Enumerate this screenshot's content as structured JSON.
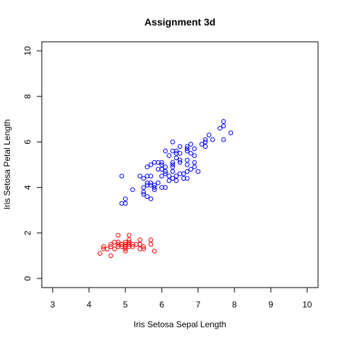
{
  "chart_data": {
    "type": "scatter",
    "title": "Assignment 3d",
    "xlabel": "Iris Setosa Sepal Length",
    "ylabel": "Iris Setosa Petal Length",
    "xlim": [
      2.7,
      10.3
    ],
    "ylim": [
      -0.4,
      10.4
    ],
    "xticks": [
      3,
      4,
      5,
      6,
      7,
      8,
      9,
      10
    ],
    "yticks": [
      0,
      2,
      4,
      6,
      8,
      10
    ],
    "grid": false,
    "legend": "none",
    "series": [
      {
        "color": "#ff0000",
        "marker": "open-circle",
        "points": [
          [
            4.3,
            1.1
          ],
          [
            4.4,
            1.3
          ],
          [
            4.4,
            1.4
          ],
          [
            4.5,
            1.3
          ],
          [
            4.6,
            1.4
          ],
          [
            4.6,
            1.0
          ],
          [
            4.6,
            1.5
          ],
          [
            4.7,
            1.3
          ],
          [
            4.7,
            1.6
          ],
          [
            4.8,
            1.4
          ],
          [
            4.8,
            1.6
          ],
          [
            4.8,
            1.9
          ],
          [
            4.9,
            1.4
          ],
          [
            4.9,
            1.5
          ],
          [
            5.0,
            1.2
          ],
          [
            5.0,
            1.3
          ],
          [
            5.0,
            1.4
          ],
          [
            5.0,
            1.5
          ],
          [
            5.0,
            1.6
          ],
          [
            5.1,
            1.4
          ],
          [
            5.1,
            1.5
          ],
          [
            5.1,
            1.7
          ],
          [
            5.1,
            1.9
          ],
          [
            5.1,
            1.6
          ],
          [
            5.2,
            1.4
          ],
          [
            5.2,
            1.5
          ],
          [
            5.3,
            1.5
          ],
          [
            5.4,
            1.3
          ],
          [
            5.4,
            1.5
          ],
          [
            5.4,
            1.7
          ],
          [
            5.5,
            1.3
          ],
          [
            5.5,
            1.4
          ],
          [
            5.7,
            1.5
          ],
          [
            5.7,
            1.7
          ],
          [
            5.8,
            1.2
          ],
          [
            4.9,
            1.5
          ],
          [
            5.0,
            1.4
          ],
          [
            5.1,
            1.5
          ],
          [
            4.8,
            1.5
          ],
          [
            5.4,
            1.5
          ]
        ]
      },
      {
        "color": "#0000ff",
        "marker": "open-circle",
        "points": [
          [
            4.9,
            4.5
          ],
          [
            4.9,
            3.3
          ],
          [
            5.0,
            3.5
          ],
          [
            5.0,
            3.3
          ],
          [
            5.2,
            3.9
          ],
          [
            5.4,
            4.5
          ],
          [
            5.5,
            3.8
          ],
          [
            5.5,
            3.7
          ],
          [
            5.5,
            4.0
          ],
          [
            5.5,
            4.4
          ],
          [
            5.6,
            3.6
          ],
          [
            5.6,
            4.1
          ],
          [
            5.6,
            4.2
          ],
          [
            5.6,
            4.5
          ],
          [
            5.6,
            4.9
          ],
          [
            5.7,
            3.5
          ],
          [
            5.7,
            4.1
          ],
          [
            5.7,
            4.2
          ],
          [
            5.7,
            4.5
          ],
          [
            5.7,
            5.0
          ],
          [
            5.8,
            3.9
          ],
          [
            5.8,
            4.0
          ],
          [
            5.8,
            4.1
          ],
          [
            5.8,
            5.1
          ],
          [
            5.9,
            4.2
          ],
          [
            5.9,
            4.8
          ],
          [
            5.9,
            5.1
          ],
          [
            6.0,
            4.0
          ],
          [
            6.0,
            4.5
          ],
          [
            6.0,
            4.8
          ],
          [
            6.0,
            5.0
          ],
          [
            6.0,
            5.1
          ],
          [
            6.1,
            4.0
          ],
          [
            6.1,
            4.6
          ],
          [
            6.1,
            4.7
          ],
          [
            6.1,
            4.9
          ],
          [
            6.1,
            5.6
          ],
          [
            6.2,
            4.3
          ],
          [
            6.2,
            4.5
          ],
          [
            6.2,
            5.4
          ],
          [
            6.3,
            4.4
          ],
          [
            6.3,
            4.7
          ],
          [
            6.3,
            4.9
          ],
          [
            6.3,
            5.0
          ],
          [
            6.3,
            5.1
          ],
          [
            6.3,
            5.6
          ],
          [
            6.3,
            6.0
          ],
          [
            6.4,
            4.3
          ],
          [
            6.4,
            4.5
          ],
          [
            6.4,
            5.3
          ],
          [
            6.4,
            5.5
          ],
          [
            6.4,
            5.6
          ],
          [
            6.5,
            4.6
          ],
          [
            6.5,
            5.1
          ],
          [
            6.5,
            5.2
          ],
          [
            6.5,
            5.5
          ],
          [
            6.5,
            5.8
          ],
          [
            6.6,
            4.4
          ],
          [
            6.6,
            4.6
          ],
          [
            6.7,
            4.4
          ],
          [
            6.7,
            4.7
          ],
          [
            6.7,
            5.0
          ],
          [
            6.7,
            5.2
          ],
          [
            6.7,
            5.6
          ],
          [
            6.7,
            5.7
          ],
          [
            6.7,
            5.8
          ],
          [
            6.8,
            4.8
          ],
          [
            6.8,
            5.5
          ],
          [
            6.8,
            5.9
          ],
          [
            6.9,
            4.9
          ],
          [
            6.9,
            5.1
          ],
          [
            6.9,
            5.4
          ],
          [
            6.9,
            5.7
          ],
          [
            7.0,
            4.7
          ],
          [
            7.1,
            5.9
          ],
          [
            7.2,
            5.8
          ],
          [
            7.2,
            6.0
          ],
          [
            7.2,
            6.1
          ],
          [
            7.3,
            6.3
          ],
          [
            7.4,
            6.1
          ],
          [
            7.6,
            6.6
          ],
          [
            7.7,
            6.1
          ],
          [
            7.7,
            6.7
          ],
          [
            7.7,
            6.9
          ],
          [
            7.9,
            6.4
          ]
        ]
      }
    ]
  }
}
